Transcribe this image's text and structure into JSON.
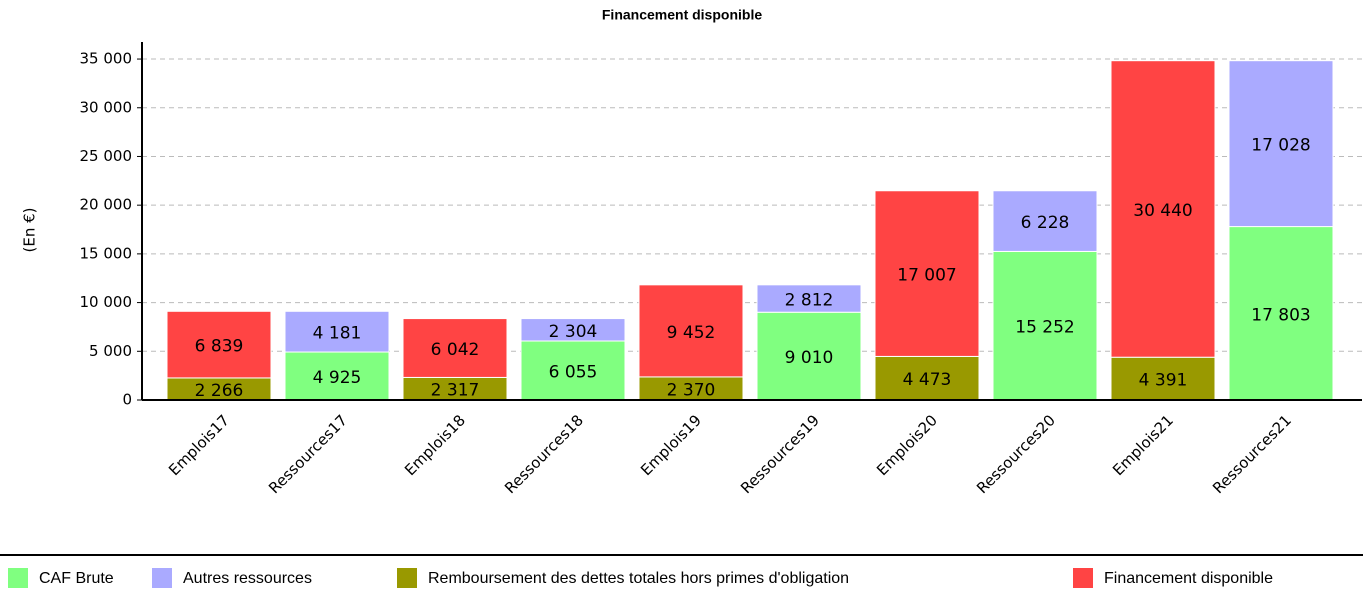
{
  "chart_data": {
    "type": "stacked_bar",
    "title": "Financement disponible",
    "y_label": "(En €)",
    "categories": [
      "Emplois17",
      "Ressources17",
      "Emplois18",
      "Ressources18",
      "Emplois19",
      "Ressources19",
      "Emplois20",
      "Ressources20",
      "Emplois21",
      "Ressources21"
    ],
    "series": [
      {
        "name": "CAF Brute",
        "color": "#80ff80",
        "values": [
          null,
          4925,
          null,
          6055,
          null,
          9010,
          null,
          15252,
          null,
          17803
        ],
        "value_labels": [
          null,
          "4 925",
          null,
          "6 055",
          null,
          "9 010",
          null,
          "15 252",
          null,
          "17 803"
        ]
      },
      {
        "name": "Autres ressources",
        "color": "#aaaaff",
        "values": [
          null,
          4181,
          null,
          2304,
          null,
          2812,
          null,
          6228,
          null,
          17028
        ],
        "value_labels": [
          null,
          "4 181",
          null,
          "2 304",
          null,
          "2 812",
          null,
          "6 228",
          null,
          "17 028"
        ]
      },
      {
        "name": "Remboursement des dettes totales hors primes d'obligation",
        "color": "#999900",
        "values": [
          2266,
          null,
          2317,
          null,
          2370,
          null,
          4473,
          null,
          4391,
          null
        ],
        "value_labels": [
          "2 266",
          null,
          "2 317",
          null,
          "2 370",
          null,
          "4 473",
          null,
          "4 391",
          null
        ]
      },
      {
        "name": "Financement disponible",
        "color": "#ff4444",
        "values": [
          6839,
          null,
          6042,
          null,
          9452,
          null,
          17007,
          null,
          30440,
          null
        ],
        "value_labels": [
          "6 839",
          null,
          "6 042",
          null,
          "9 452",
          null,
          "17 007",
          null,
          "30 440",
          null
        ]
      }
    ],
    "ylim": [
      0,
      36750
    ],
    "yticks": [
      0,
      {
        "value": 5000,
        "label": "5 000"
      },
      {
        "value": 10000,
        "label": "10 000"
      },
      {
        "value": 15000,
        "label": "15 000"
      },
      {
        "value": 20000,
        "label": "20 000"
      },
      {
        "value": 25000,
        "label": "25 000"
      },
      {
        "value": 30000,
        "label": "30 000"
      },
      {
        "value": 35000,
        "label": "35 000"
      }
    ],
    "grid": true,
    "legend": "bottom"
  }
}
